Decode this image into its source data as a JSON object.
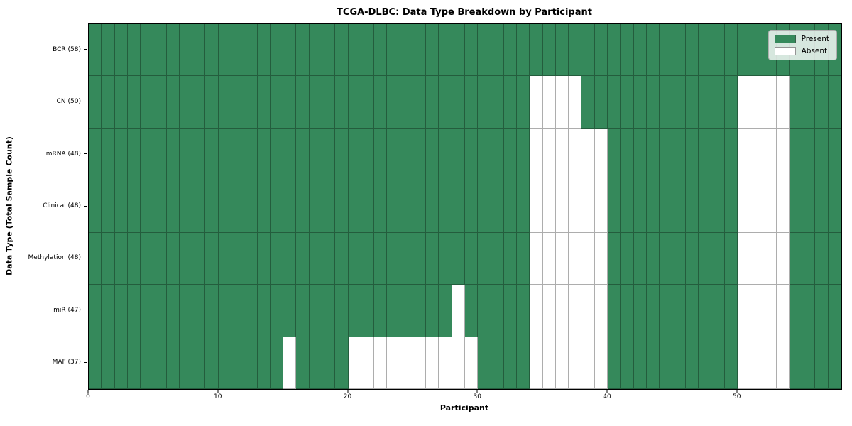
{
  "figure": {
    "title": "TCGA-DLBC: Data Type Breakdown by Participant",
    "xlabel": "Participant",
    "ylabel": "Data Type (Total Sample Count)"
  },
  "legend": {
    "items": [
      {
        "label": "Present",
        "color": "#35895b"
      },
      {
        "label": "Absent",
        "color": "#ffffff"
      }
    ]
  },
  "chart_data": {
    "type": "heatmap",
    "title": "TCGA-DLBC: Data Type Breakdown by Participant",
    "xlabel": "Participant",
    "ylabel": "Data Type (Total Sample Count)",
    "n_participants": 58,
    "x_range": [
      0,
      58
    ],
    "x_ticks": [
      0,
      10,
      20,
      30,
      40,
      50
    ],
    "grid": true,
    "legend_position": "upper right",
    "legend_entries": [
      "Present",
      "Absent"
    ],
    "colors": {
      "present": "#35895b",
      "absent": "#ffffff",
      "grid": "rgba(0,0,0,0.32)"
    },
    "rows": [
      {
        "label": "BCR (58)",
        "data_type": "BCR",
        "total_samples": 58,
        "absent_participants": []
      },
      {
        "label": "CN (50)",
        "data_type": "CN",
        "total_samples": 50,
        "absent_participants": [
          34,
          35,
          36,
          37,
          50,
          51,
          52,
          53
        ]
      },
      {
        "label": "mRNA (48)",
        "data_type": "mRNA",
        "total_samples": 48,
        "absent_participants": [
          34,
          35,
          36,
          37,
          38,
          39,
          50,
          51,
          52,
          53
        ]
      },
      {
        "label": "Clinical (48)",
        "data_type": "Clinical",
        "total_samples": 48,
        "absent_participants": [
          34,
          35,
          36,
          37,
          38,
          39,
          50,
          51,
          52,
          53
        ]
      },
      {
        "label": "Methylation (48)",
        "data_type": "Methylation",
        "total_samples": 48,
        "absent_participants": [
          34,
          35,
          36,
          37,
          38,
          39,
          50,
          51,
          52,
          53
        ]
      },
      {
        "label": "miR (47)",
        "data_type": "miR",
        "total_samples": 47,
        "absent_participants": [
          28,
          34,
          35,
          36,
          37,
          38,
          39,
          50,
          51,
          52,
          53
        ]
      },
      {
        "label": "MAF (37)",
        "data_type": "MAF",
        "total_samples": 37,
        "absent_participants": [
          15,
          20,
          21,
          22,
          23,
          24,
          25,
          26,
          27,
          28,
          29,
          34,
          35,
          36,
          37,
          38,
          39,
          50,
          51,
          52,
          53
        ]
      }
    ]
  }
}
